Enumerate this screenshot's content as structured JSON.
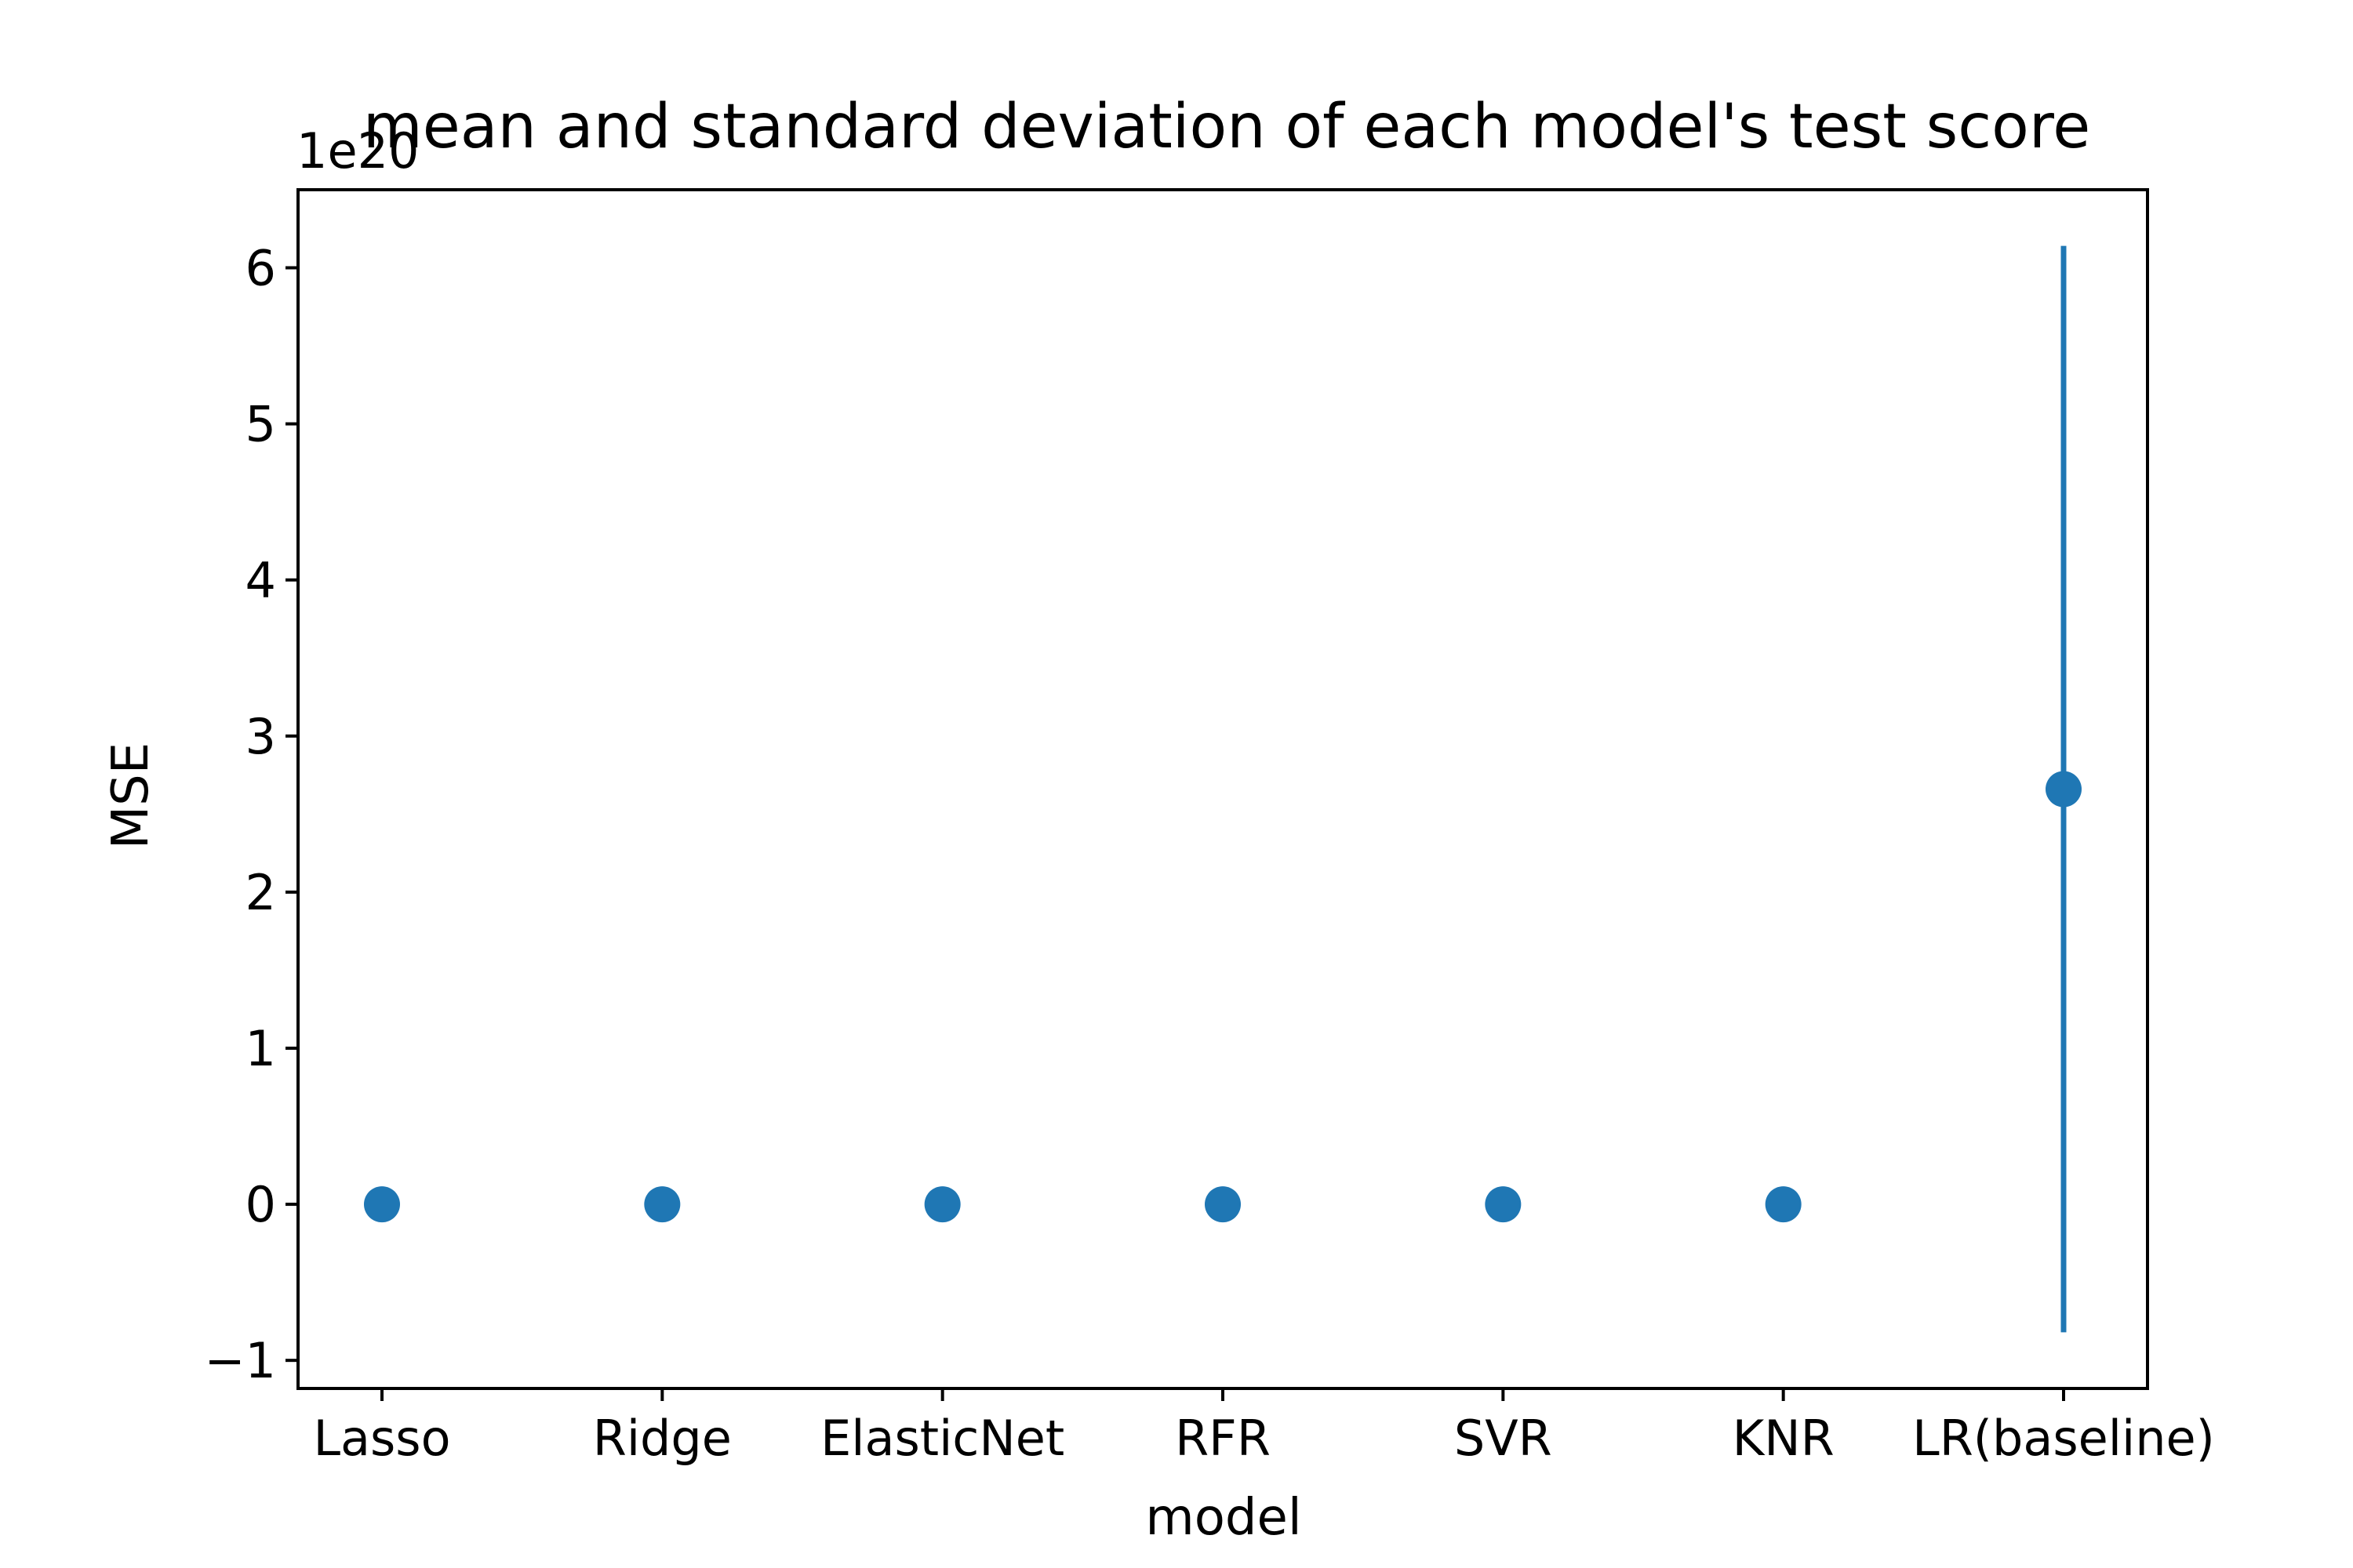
{
  "chart_data": {
    "type": "scatter",
    "title": "mean and standard deviation of each model's test score",
    "xlabel": "model",
    "ylabel": "MSE",
    "y_offset_label": "1e20",
    "y_scale_factor": 1e+20,
    "categories": [
      "Lasso",
      "Ridge",
      "ElasticNet",
      "RFR",
      "SVR",
      "KNR",
      "LR(baseline)"
    ],
    "series": [
      {
        "values": [
          0,
          0,
          0,
          0,
          0,
          0,
          2.66e+20
        ],
        "error": [
          0,
          0,
          0,
          0,
          0,
          0,
          3.48e+20
        ],
        "color": "#1f77b4"
      }
    ],
    "ylim": [
      -1.18e+20,
      6.5e+20
    ],
    "y_ticks": [
      -1,
      0,
      1,
      2,
      3,
      4,
      5,
      6
    ],
    "y_tick_labels": [
      "−1",
      "0",
      "1",
      "2",
      "3",
      "4",
      "5",
      "6"
    ],
    "grid": false,
    "legend": "none"
  }
}
